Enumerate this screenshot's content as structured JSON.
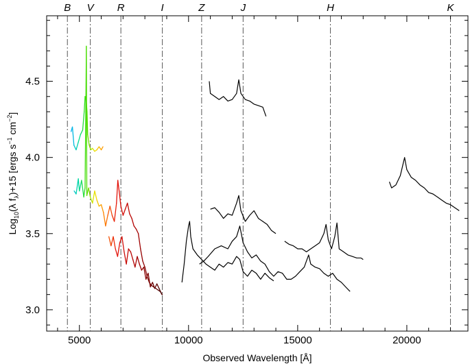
{
  "chart_data": {
    "type": "line",
    "title": "",
    "xlabel": "Observed Wavelength [Å]",
    "ylabel": "Log₁₀(λ f_λ)+15 [ergs s⁻¹ cm⁻²]",
    "ylabel_parts": {
      "a": "Log",
      "a_sub": "10",
      "b": "(λ f",
      "b_sub": "λ",
      "c": ")+15 [ergs s",
      "c_sup": "−1",
      "d": " cm",
      "d_sup": "−2",
      "e": "]"
    },
    "xlim": [
      3500,
      22800
    ],
    "ylim": [
      2.86,
      4.93
    ],
    "x_ticks": [
      5000,
      10000,
      15000,
      20000
    ],
    "x_tick_labels": [
      "5000",
      "10000",
      "15000",
      "20000"
    ],
    "y_ticks": [
      3.0,
      3.5,
      4.0,
      4.5
    ],
    "y_tick_labels": [
      "3.0",
      "3.5",
      "4.0",
      "4.5"
    ],
    "grid": false,
    "bands": [
      {
        "name": "B",
        "x": 4450
      },
      {
        "name": "V",
        "x": 5500
      },
      {
        "name": "R",
        "x": 6900
      },
      {
        "name": "I",
        "x": 8800
      },
      {
        "name": "Z",
        "x": 10600
      },
      {
        "name": "J",
        "x": 12500
      },
      {
        "name": "H",
        "x": 16500
      },
      {
        "name": "K",
        "x": 22000
      }
    ],
    "series": [
      {
        "color": "colormap",
        "points": [
          [
            4620,
            4.17
          ],
          [
            4680,
            4.2
          ],
          [
            4750,
            4.08
          ],
          [
            4850,
            4.05
          ],
          [
            4950,
            4.1
          ],
          [
            5050,
            4.15
          ],
          [
            5150,
            4.18
          ],
          [
            5220,
            4.3
          ],
          [
            5260,
            4.4
          ],
          [
            5320,
            4.36
          ],
          [
            5350,
            4.3
          ],
          [
            5380,
            4.15
          ],
          [
            5450,
            4.08
          ],
          [
            5520,
            4.05
          ],
          [
            5600,
            4.06
          ],
          [
            5700,
            4.04
          ],
          [
            5800,
            4.05
          ],
          [
            5900,
            4.07
          ],
          [
            6000,
            4.05
          ],
          [
            6080,
            4.07
          ]
        ]
      },
      {
        "color": "colormap",
        "points": [
          [
            4760,
            3.78
          ],
          [
            4850,
            3.76
          ],
          [
            4950,
            3.86
          ],
          [
            5000,
            3.78
          ],
          [
            5100,
            3.85
          ],
          [
            5200,
            3.74
          ],
          [
            5260,
            3.8
          ],
          [
            5320,
            4.73
          ],
          [
            5340,
            3.75
          ],
          [
            5420,
            3.8
          ],
          [
            5500,
            3.74
          ],
          [
            5600,
            3.7
          ],
          [
            5700,
            3.78
          ],
          [
            5800,
            3.72
          ],
          [
            5900,
            3.68
          ],
          [
            6000,
            3.69
          ],
          [
            6100,
            3.64
          ],
          [
            6200,
            3.55
          ],
          [
            6300,
            3.62
          ],
          [
            6400,
            3.68
          ],
          [
            6500,
            3.62
          ],
          [
            6600,
            3.58
          ],
          [
            6700,
            3.7
          ],
          [
            6760,
            3.85
          ],
          [
            6820,
            3.78
          ],
          [
            6900,
            3.68
          ],
          [
            7000,
            3.62
          ],
          [
            7100,
            3.66
          ],
          [
            7200,
            3.7
          ],
          [
            7300,
            3.63
          ],
          [
            7400,
            3.6
          ],
          [
            7500,
            3.55
          ],
          [
            7600,
            3.53
          ],
          [
            7700,
            3.5
          ],
          [
            7800,
            3.4
          ],
          [
            7900,
            3.32
          ],
          [
            8000,
            3.28
          ],
          [
            8100,
            3.22
          ],
          [
            8200,
            3.18
          ],
          [
            8300,
            3.16
          ],
          [
            8400,
            3.15
          ],
          [
            8500,
            3.14
          ],
          [
            8600,
            3.13
          ],
          [
            8700,
            3.12
          ],
          [
            8800,
            3.1
          ]
        ]
      },
      {
        "color": "colormap",
        "points": [
          [
            6350,
            3.48
          ],
          [
            6450,
            3.42
          ],
          [
            6550,
            3.48
          ],
          [
            6650,
            3.4
          ],
          [
            6750,
            3.35
          ],
          [
            6850,
            3.44
          ],
          [
            6950,
            3.48
          ],
          [
            7050,
            3.38
          ],
          [
            7150,
            3.3
          ],
          [
            7250,
            3.4
          ],
          [
            7350,
            3.38
          ],
          [
            7450,
            3.33
          ],
          [
            7550,
            3.28
          ],
          [
            7650,
            3.35
          ],
          [
            7750,
            3.3
          ],
          [
            7850,
            3.26
          ],
          [
            7950,
            3.28
          ],
          [
            8050,
            3.2
          ],
          [
            8150,
            3.24
          ],
          [
            8250,
            3.15
          ],
          [
            8350,
            3.18
          ],
          [
            8450,
            3.14
          ],
          [
            8550,
            3.17
          ],
          [
            8650,
            3.14
          ],
          [
            8780,
            3.1
          ]
        ]
      },
      {
        "color": "#000000",
        "points": [
          [
            10950,
            4.5
          ],
          [
            11000,
            4.42
          ],
          [
            11200,
            4.4
          ],
          [
            11400,
            4.38
          ],
          [
            11600,
            4.4
          ],
          [
            11800,
            4.37
          ],
          [
            12000,
            4.38
          ],
          [
            12200,
            4.42
          ],
          [
            12300,
            4.51
          ],
          [
            12400,
            4.42
          ],
          [
            12600,
            4.38
          ],
          [
            12800,
            4.37
          ],
          [
            13000,
            4.35
          ],
          [
            13200,
            4.34
          ],
          [
            13400,
            4.33
          ],
          [
            13550,
            4.27
          ]
        ]
      },
      {
        "color": "#000000",
        "points": [
          [
            9700,
            3.18
          ],
          [
            9800,
            3.3
          ],
          [
            9900,
            3.45
          ],
          [
            10000,
            3.55
          ],
          [
            10050,
            3.58
          ],
          [
            10100,
            3.48
          ],
          [
            10200,
            3.4
          ],
          [
            10400,
            3.36
          ],
          [
            10600,
            3.33
          ],
          [
            10800,
            3.3
          ],
          [
            11000,
            3.28
          ],
          [
            11200,
            3.26
          ],
          [
            11400,
            3.3
          ],
          [
            11600,
            3.28
          ],
          [
            11800,
            3.31
          ],
          [
            12000,
            3.3
          ],
          [
            12200,
            3.35
          ],
          [
            12350,
            3.33
          ],
          [
            12500,
            3.25
          ],
          [
            12700,
            3.22
          ],
          [
            12900,
            3.26
          ],
          [
            13100,
            3.24
          ],
          [
            13300,
            3.2
          ],
          [
            13500,
            3.24
          ],
          [
            13700,
            3.21
          ],
          [
            13900,
            3.19
          ]
        ]
      },
      {
        "color": "#000000",
        "points": [
          [
            11000,
            3.66
          ],
          [
            11200,
            3.67
          ],
          [
            11400,
            3.64
          ],
          [
            11600,
            3.6
          ],
          [
            11800,
            3.63
          ],
          [
            12000,
            3.62
          ],
          [
            12200,
            3.7
          ],
          [
            12300,
            3.75
          ],
          [
            12400,
            3.65
          ],
          [
            12600,
            3.58
          ],
          [
            12800,
            3.62
          ],
          [
            13000,
            3.65
          ],
          [
            13200,
            3.6
          ],
          [
            13400,
            3.58
          ],
          [
            13600,
            3.56
          ],
          [
            13800,
            3.52
          ],
          [
            14000,
            3.5
          ]
        ]
      },
      {
        "color": "#000000",
        "points": [
          [
            10500,
            3.3
          ],
          [
            10700,
            3.32
          ],
          [
            10900,
            3.35
          ],
          [
            11200,
            3.4
          ],
          [
            11500,
            3.42
          ],
          [
            11800,
            3.4
          ],
          [
            12000,
            3.45
          ],
          [
            12200,
            3.48
          ],
          [
            12350,
            3.55
          ],
          [
            12500,
            3.44
          ],
          [
            12700,
            3.38
          ],
          [
            12900,
            3.34
          ],
          [
            13100,
            3.36
          ],
          [
            13300,
            3.32
          ],
          [
            13500,
            3.3
          ],
          [
            13700,
            3.25
          ],
          [
            13900,
            3.22
          ],
          [
            14100,
            3.25
          ],
          [
            14300,
            3.24
          ],
          [
            14500,
            3.2
          ],
          [
            14700,
            3.2
          ],
          [
            14900,
            3.22
          ],
          [
            15100,
            3.25
          ],
          [
            15300,
            3.28
          ],
          [
            15500,
            3.36
          ],
          [
            15600,
            3.3
          ],
          [
            15800,
            3.28
          ],
          [
            16000,
            3.27
          ],
          [
            16200,
            3.24
          ],
          [
            16400,
            3.22
          ],
          [
            16600,
            3.24
          ],
          [
            16800,
            3.2
          ],
          [
            17000,
            3.18
          ],
          [
            17200,
            3.15
          ],
          [
            17400,
            3.12
          ]
        ]
      },
      {
        "color": "#000000",
        "points": [
          [
            14400,
            3.45
          ],
          [
            14600,
            3.43
          ],
          [
            14800,
            3.42
          ],
          [
            15000,
            3.4
          ],
          [
            15200,
            3.4
          ],
          [
            15400,
            3.38
          ],
          [
            15600,
            3.4
          ],
          [
            15800,
            3.42
          ],
          [
            16000,
            3.44
          ],
          [
            16200,
            3.5
          ],
          [
            16300,
            3.56
          ],
          [
            16400,
            3.46
          ],
          [
            16550,
            3.4
          ],
          [
            16700,
            3.48
          ],
          [
            16800,
            3.57
          ],
          [
            16900,
            3.4
          ],
          [
            17100,
            3.38
          ],
          [
            17300,
            3.36
          ],
          [
            17500,
            3.35
          ],
          [
            17700,
            3.34
          ],
          [
            17900,
            3.34
          ],
          [
            18000,
            3.33
          ]
        ]
      },
      {
        "color": "#000000",
        "points": [
          [
            19200,
            3.84
          ],
          [
            19300,
            3.8
          ],
          [
            19500,
            3.82
          ],
          [
            19700,
            3.88
          ],
          [
            19900,
            4.0
          ],
          [
            20000,
            3.92
          ],
          [
            20200,
            3.87
          ],
          [
            20400,
            3.85
          ],
          [
            20600,
            3.82
          ],
          [
            20800,
            3.8
          ],
          [
            21000,
            3.77
          ],
          [
            21200,
            3.76
          ],
          [
            21400,
            3.74
          ],
          [
            21600,
            3.72
          ],
          [
            21800,
            3.7
          ],
          [
            22000,
            3.69
          ],
          [
            22200,
            3.67
          ],
          [
            22400,
            3.65
          ]
        ]
      }
    ]
  }
}
